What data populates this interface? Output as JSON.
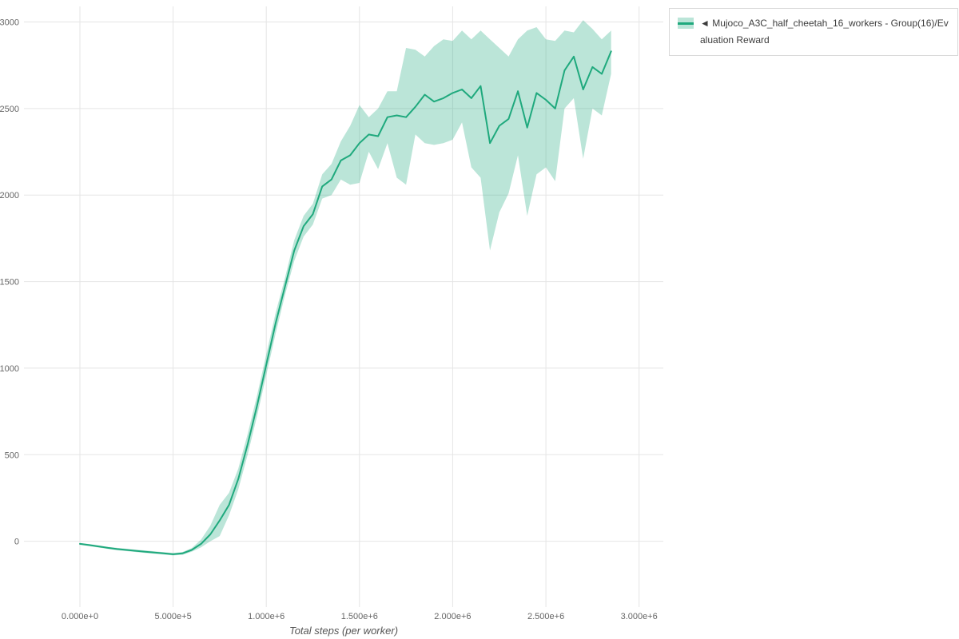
{
  "legend": {
    "label": "◄ Mujoco_A3C_half_cheetah_16_workers - Group(16)/Evaluation Reward"
  },
  "chart_data": {
    "type": "line",
    "title": "",
    "xlabel": "Total steps (per worker)",
    "ylabel": "",
    "grid": true,
    "legend_position": "outside-top-right",
    "xlim": [
      -300000,
      3130000
    ],
    "ylim": [
      -380,
      3090
    ],
    "grid_color": "#e5e5e5",
    "tick_color": "#666666",
    "x_ticks": [
      {
        "value": 0,
        "label": "0.000e+0"
      },
      {
        "value": 500000,
        "label": "5.000e+5"
      },
      {
        "value": 1000000,
        "label": "1.000e+6"
      },
      {
        "value": 1500000,
        "label": "1.500e+6"
      },
      {
        "value": 2000000,
        "label": "2.000e+6"
      },
      {
        "value": 2500000,
        "label": "2.500e+6"
      },
      {
        "value": 3000000,
        "label": "3.000e+6"
      }
    ],
    "y_ticks": [
      {
        "value": 0,
        "label": "0"
      },
      {
        "value": 500,
        "label": "500"
      },
      {
        "value": 1000,
        "label": "1000"
      },
      {
        "value": 1500,
        "label": "1500"
      },
      {
        "value": 2000,
        "label": "2000"
      },
      {
        "value": 2500,
        "label": "2500"
      },
      {
        "value": 3000,
        "label": "3000"
      }
    ],
    "series": [
      {
        "name": "Mujoco_A3C_half_cheetah_16_workers - Group(16)/Evaluation Reward",
        "color": "#1fa97d",
        "band_color": "rgba(31,169,125,0.30)",
        "x": [
          0,
          50000,
          100000,
          150000,
          200000,
          250000,
          300000,
          350000,
          400000,
          450000,
          500000,
          550000,
          600000,
          650000,
          700000,
          750000,
          800000,
          850000,
          900000,
          950000,
          1000000,
          1050000,
          1100000,
          1150000,
          1200000,
          1250000,
          1300000,
          1350000,
          1400000,
          1450000,
          1500000,
          1550000,
          1600000,
          1650000,
          1700000,
          1750000,
          1800000,
          1850000,
          1900000,
          1950000,
          2000000,
          2050000,
          2100000,
          2150000,
          2200000,
          2250000,
          2300000,
          2350000,
          2400000,
          2450000,
          2500000,
          2550000,
          2600000,
          2650000,
          2700000,
          2750000,
          2800000,
          2850000
        ],
        "mean": [
          -15,
          -22,
          -30,
          -38,
          -45,
          -50,
          -55,
          -60,
          -65,
          -70,
          -75,
          -70,
          -50,
          -15,
          40,
          120,
          210,
          360,
          560,
          780,
          1020,
          1260,
          1470,
          1680,
          1820,
          1890,
          2050,
          2090,
          2200,
          2230,
          2300,
          2350,
          2340,
          2450,
          2460,
          2450,
          2510,
          2580,
          2540,
          2560,
          2590,
          2610,
          2560,
          2630,
          2300,
          2400,
          2440,
          2600,
          2390,
          2590,
          2550,
          2500,
          2720,
          2800,
          2610,
          2740,
          2700,
          2830
        ],
        "band_min": [
          -20,
          -28,
          -36,
          -44,
          -52,
          -57,
          -62,
          -67,
          -72,
          -77,
          -82,
          -78,
          -60,
          -35,
          0,
          30,
          150,
          300,
          500,
          720,
          960,
          1200,
          1420,
          1620,
          1760,
          1830,
          1980,
          2000,
          2090,
          2060,
          2070,
          2250,
          2150,
          2300,
          2100,
          2060,
          2350,
          2300,
          2290,
          2300,
          2320,
          2420,
          2160,
          2100,
          1680,
          1900,
          2010,
          2230,
          1880,
          2120,
          2160,
          2080,
          2500,
          2560,
          2210,
          2500,
          2460,
          2700
        ],
        "band_max": [
          -10,
          -16,
          -24,
          -32,
          -38,
          -43,
          -48,
          -53,
          -58,
          -63,
          -68,
          -62,
          -40,
          10,
          90,
          210,
          280,
          420,
          620,
          840,
          1080,
          1320,
          1520,
          1740,
          1880,
          1950,
          2120,
          2180,
          2310,
          2400,
          2520,
          2450,
          2500,
          2600,
          2600,
          2850,
          2840,
          2800,
          2860,
          2900,
          2890,
          2950,
          2900,
          2950,
          2900,
          2850,
          2800,
          2900,
          2950,
          2970,
          2900,
          2890,
          2950,
          2940,
          3010,
          2960,
          2900,
          2950
        ]
      }
    ]
  }
}
